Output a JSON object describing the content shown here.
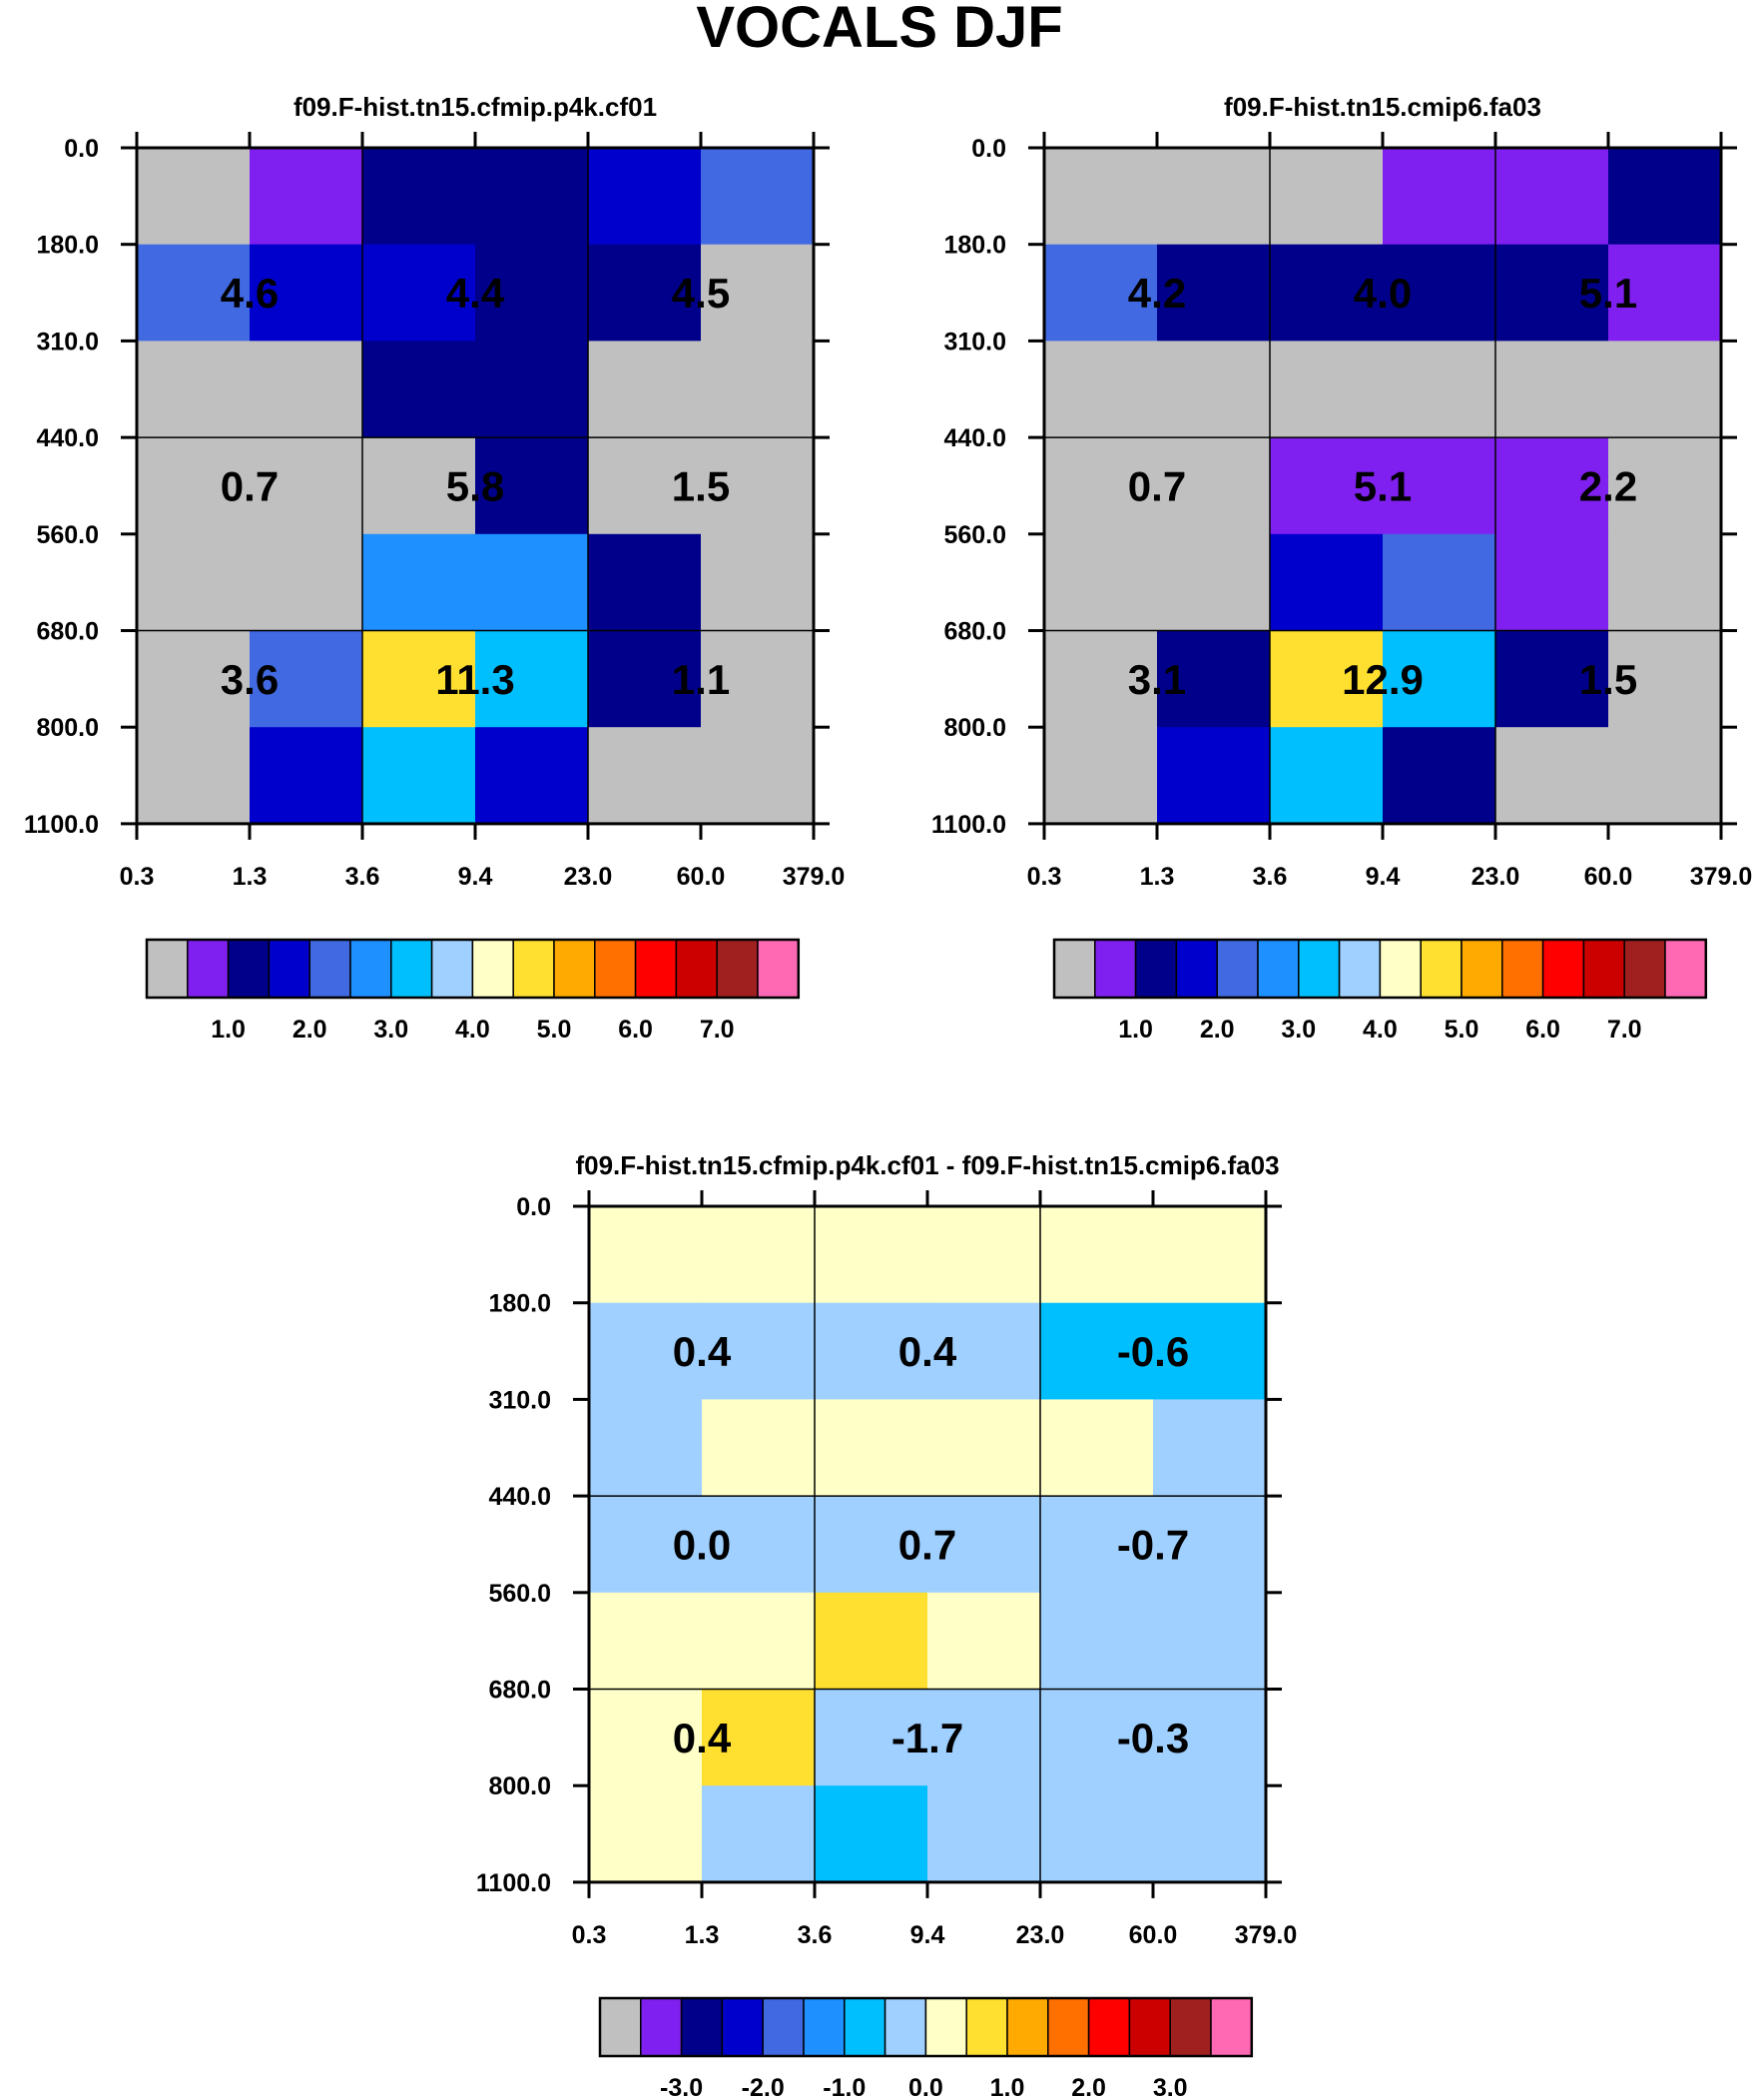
{
  "figure": {
    "title": "VOCALS DJF"
  },
  "chart_data": [
    {
      "type": "heatmap",
      "id": "p1",
      "title": "f09.F-hist.tn15.cfmip.p4k.cf01",
      "x_ticks": [
        "0.3",
        "1.3",
        "3.6",
        "9.4",
        "23.0",
        "60.0",
        "379.0"
      ],
      "y_ticks": [
        "0.0",
        "180.0",
        "310.0",
        "440.0",
        "560.0",
        "680.0",
        "800.0",
        "1100.0"
      ],
      "cells": [
        [
          0,
          1,
          2,
          2,
          3,
          4
        ],
        [
          4,
          3,
          3,
          2,
          2,
          0
        ],
        [
          0,
          0,
          2,
          2,
          0,
          0
        ],
        [
          0,
          0,
          0,
          2,
          0,
          0
        ],
        [
          0,
          0,
          5,
          5,
          2,
          0
        ],
        [
          0,
          4,
          9,
          6,
          2,
          0
        ],
        [
          0,
          3,
          6,
          3,
          0,
          0
        ]
      ],
      "annotations": [
        [
          "4.6",
          "4.4",
          "4.5"
        ],
        [
          "0.7",
          "5.8",
          "1.5"
        ],
        [
          "3.6",
          "11.3",
          "1.1"
        ]
      ],
      "colorbar": {
        "colors": [
          "#c0c0c0",
          "#8020f0",
          "#00008b",
          "#0000cd",
          "#4169e1",
          "#1e90ff",
          "#00bfff",
          "#a0d0ff",
          "#ffffc8",
          "#ffe030",
          "#ffaa00",
          "#ff7000",
          "#ff0000",
          "#cd0000",
          "#a02020",
          "#ff69b4"
        ],
        "labels": [
          "1.0",
          "2.0",
          "3.0",
          "4.0",
          "5.0",
          "6.0",
          "7.0"
        ]
      }
    },
    {
      "type": "heatmap",
      "id": "p2",
      "title": "f09.F-hist.tn15.cmip6.fa03",
      "x_ticks": [
        "0.3",
        "1.3",
        "3.6",
        "9.4",
        "23.0",
        "60.0",
        "379.0"
      ],
      "y_ticks": [
        "0.0",
        "180.0",
        "310.0",
        "440.0",
        "560.0",
        "680.0",
        "800.0",
        "1100.0"
      ],
      "cells": [
        [
          0,
          0,
          0,
          1,
          1,
          2
        ],
        [
          4,
          2,
          2,
          2,
          2,
          1
        ],
        [
          0,
          0,
          0,
          0,
          0,
          0
        ],
        [
          0,
          0,
          1,
          1,
          1,
          0
        ],
        [
          0,
          0,
          3,
          4,
          1,
          0
        ],
        [
          0,
          2,
          9,
          6,
          2,
          0
        ],
        [
          0,
          3,
          6,
          2,
          0,
          0
        ]
      ],
      "annotations": [
        [
          "4.2",
          "4.0",
          "5.1"
        ],
        [
          "0.7",
          "5.1",
          "2.2"
        ],
        [
          "3.1",
          "12.9",
          "1.5"
        ]
      ],
      "colorbar": {
        "colors": [
          "#c0c0c0",
          "#8020f0",
          "#00008b",
          "#0000cd",
          "#4169e1",
          "#1e90ff",
          "#00bfff",
          "#a0d0ff",
          "#ffffc8",
          "#ffe030",
          "#ffaa00",
          "#ff7000",
          "#ff0000",
          "#cd0000",
          "#a02020",
          "#ff69b4"
        ],
        "labels": [
          "1.0",
          "2.0",
          "3.0",
          "4.0",
          "5.0",
          "6.0",
          "7.0"
        ]
      }
    },
    {
      "type": "heatmap",
      "id": "p3",
      "title": "f09.F-hist.tn15.cfmip.p4k.cf01 - f09.F-hist.tn15.cmip6.fa03",
      "x_ticks": [
        "0.3",
        "1.3",
        "3.6",
        "9.4",
        "23.0",
        "60.0",
        "379.0"
      ],
      "y_ticks": [
        "0.0",
        "180.0",
        "310.0",
        "440.0",
        "560.0",
        "680.0",
        "800.0",
        "1100.0"
      ],
      "cells": [
        [
          8,
          8,
          8,
          8,
          8,
          8
        ],
        [
          7,
          7,
          7,
          7,
          6,
          6
        ],
        [
          7,
          8,
          8,
          8,
          8,
          7
        ],
        [
          7,
          7,
          7,
          7,
          7,
          7
        ],
        [
          8,
          8,
          9,
          8,
          7,
          7
        ],
        [
          8,
          9,
          7,
          7,
          7,
          7
        ],
        [
          8,
          7,
          6,
          7,
          7,
          7
        ]
      ],
      "annotations": [
        [
          "0.4",
          "0.4",
          "-0.6"
        ],
        [
          "0.0",
          "0.7",
          "-0.7"
        ],
        [
          "0.4",
          "-1.7",
          "-0.3"
        ]
      ],
      "colorbar": {
        "colors": [
          "#c0c0c0",
          "#8020f0",
          "#00008b",
          "#0000cd",
          "#4169e1",
          "#1e90ff",
          "#00bfff",
          "#a0d0ff",
          "#ffffc8",
          "#ffe030",
          "#ffaa00",
          "#ff7000",
          "#ff0000",
          "#cd0000",
          "#a02020",
          "#ff69b4"
        ],
        "labels": [
          "-3.0",
          "-2.0",
          "-1.0",
          "0.0",
          "1.0",
          "2.0",
          "3.0"
        ]
      }
    }
  ]
}
